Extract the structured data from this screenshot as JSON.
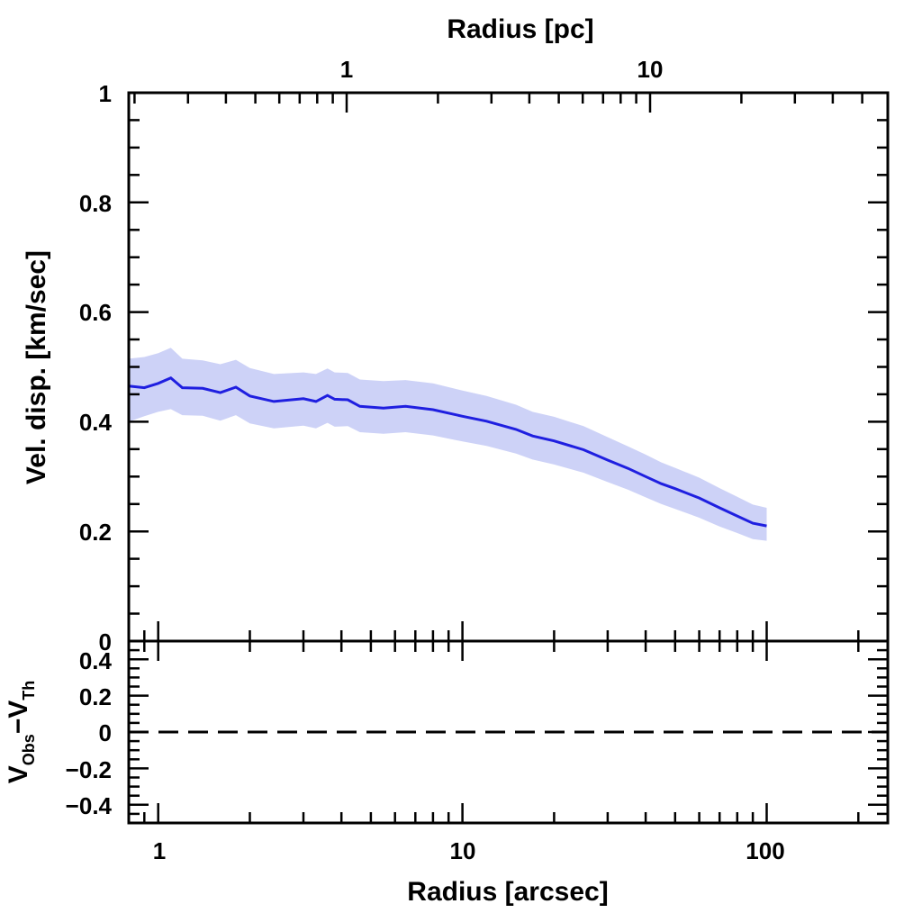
{
  "chart_data": [
    {
      "type": "line",
      "panel": "main",
      "top_axis": {
        "label": "Radius [pc]",
        "scale": "log",
        "tick_labels": [
          "1",
          "10"
        ]
      },
      "ylabel": "Vel. disp. [km/sec]",
      "ylim": [
        0,
        1
      ],
      "xlim": [
        0.8,
        250
      ],
      "x_scale": "log",
      "y_tick_labels": [
        "0",
        "0.2",
        "0.4",
        "0.6",
        "0.8",
        "1"
      ],
      "colors": {
        "line": "#1f1fe0",
        "band": "#cdd2f7"
      },
      "series": [
        {
          "x": [
            0.8,
            0.9,
            1.0,
            1.1,
            1.2,
            1.4,
            1.6,
            1.8,
            2.0,
            2.4,
            3.0,
            3.3,
            3.6,
            3.8,
            4.2,
            4.6,
            5.5,
            6.5,
            8,
            10,
            12,
            15,
            17,
            20,
            25,
            30,
            35,
            40,
            45,
            50,
            60,
            70,
            80,
            90,
            100
          ],
          "y": [
            0.465,
            0.462,
            0.47,
            0.48,
            0.462,
            0.461,
            0.453,
            0.463,
            0.447,
            0.437,
            0.442,
            0.437,
            0.448,
            0.441,
            0.44,
            0.428,
            0.425,
            0.428,
            0.422,
            0.41,
            0.401,
            0.386,
            0.374,
            0.365,
            0.349,
            0.33,
            0.315,
            0.3,
            0.287,
            0.278,
            0.261,
            0.243,
            0.228,
            0.215,
            0.21
          ],
          "band_upper": [
            0.515,
            0.518,
            0.525,
            0.535,
            0.515,
            0.512,
            0.505,
            0.513,
            0.498,
            0.487,
            0.49,
            0.487,
            0.497,
            0.49,
            0.489,
            0.477,
            0.474,
            0.476,
            0.47,
            0.457,
            0.447,
            0.431,
            0.418,
            0.409,
            0.392,
            0.372,
            0.355,
            0.34,
            0.326,
            0.316,
            0.298,
            0.279,
            0.263,
            0.249,
            0.243
          ],
          "band_lower": [
            0.4,
            0.41,
            0.418,
            0.423,
            0.412,
            0.411,
            0.402,
            0.412,
            0.397,
            0.388,
            0.393,
            0.388,
            0.398,
            0.391,
            0.392,
            0.381,
            0.378,
            0.381,
            0.375,
            0.364,
            0.356,
            0.342,
            0.331,
            0.322,
            0.307,
            0.29,
            0.276,
            0.262,
            0.25,
            0.241,
            0.225,
            0.209,
            0.197,
            0.186,
            0.183
          ]
        }
      ]
    },
    {
      "type": "line",
      "panel": "residual",
      "xlabel": "Radius [arcsec]",
      "ylabel_main": "V",
      "ylabel_sub1": "Obs",
      "ylabel_minus": "−V",
      "ylabel_sub2": "Th",
      "ylim": [
        -0.5,
        0.5
      ],
      "xlim": [
        0.8,
        250
      ],
      "x_scale": "log",
      "x_tick_labels": [
        "1",
        "10",
        "100"
      ],
      "y_tick_labels": [
        "0.4",
        "0.2",
        "0",
        "−0.2",
        "−0.4"
      ],
      "reference_line": {
        "y": 0,
        "style": "dashed"
      }
    }
  ]
}
